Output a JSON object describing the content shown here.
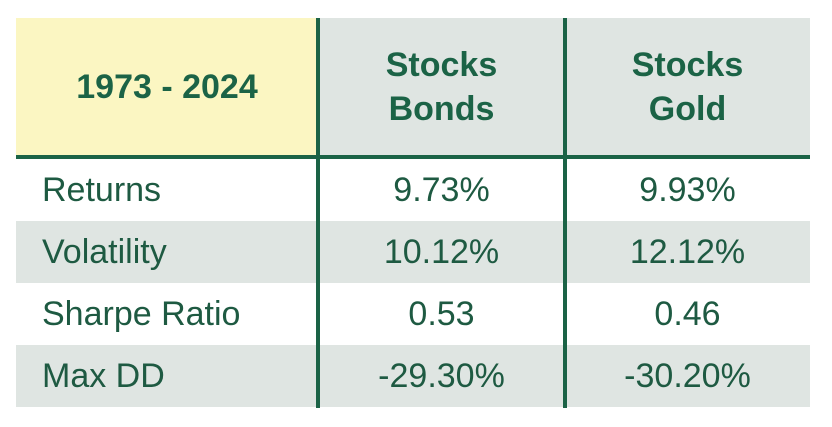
{
  "chart_data": {
    "type": "table",
    "period": "1973 - 2024",
    "columns": [
      {
        "line1": "Stocks",
        "line2": "Bonds"
      },
      {
        "line1": "Stocks",
        "line2": "Gold"
      }
    ],
    "rows": [
      {
        "label": "Returns",
        "values": [
          "9.73%",
          "9.93%"
        ]
      },
      {
        "label": "Volatility",
        "values": [
          "10.12%",
          "12.12%"
        ]
      },
      {
        "label": "Sharpe Ratio",
        "values": [
          "0.53",
          "0.46"
        ]
      },
      {
        "label": "Max DD",
        "values": [
          "-29.30%",
          "-30.20%"
        ]
      }
    ]
  },
  "colors": {
    "accent": "#1b6346",
    "header_period_bg": "#fbf6c2",
    "header_bg": "#dfe5e2",
    "shaded_row_bg": "#dfe5e2",
    "text": "#1e5a42"
  }
}
